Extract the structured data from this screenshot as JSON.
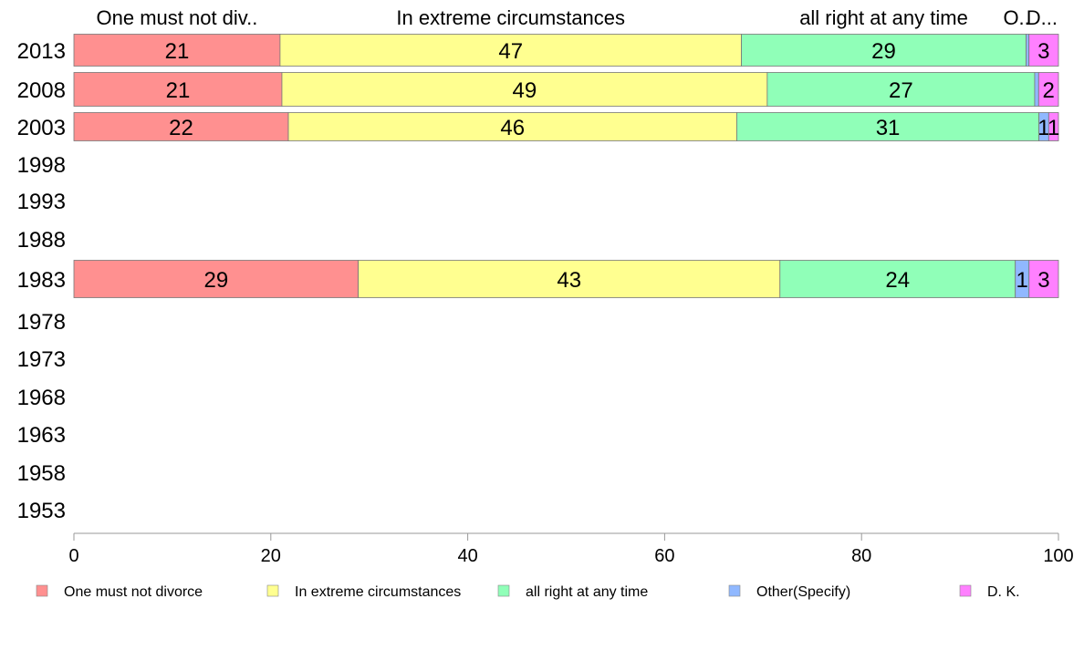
{
  "chart_data": {
    "type": "bar",
    "orientation": "horizontal",
    "stacked": true,
    "categories": [
      "2013",
      "2008",
      "2003",
      "1998",
      "1993",
      "1988",
      "1983",
      "1978",
      "1973",
      "1968",
      "1963",
      "1958",
      "1953"
    ],
    "series": [
      {
        "name": "One must not divorce",
        "color": "#ff9090",
        "values": [
          21,
          21,
          22,
          null,
          null,
          null,
          29,
          null,
          null,
          null,
          null,
          null,
          null
        ],
        "labels": [
          "21",
          "21",
          "22",
          "",
          "",
          "",
          "29",
          "",
          "",
          "",
          "",
          "",
          ""
        ]
      },
      {
        "name": "In extreme circumstances",
        "color": "#ffff90",
        "values": [
          47,
          49,
          46,
          null,
          null,
          null,
          43,
          null,
          null,
          null,
          null,
          null,
          null
        ],
        "labels": [
          "47",
          "49",
          "46",
          "",
          "",
          "",
          "43",
          "",
          "",
          "",
          "",
          "",
          ""
        ]
      },
      {
        "name": "all right at any time",
        "color": "#90ffb8",
        "values": [
          29,
          27,
          31,
          null,
          null,
          null,
          24,
          null,
          null,
          null,
          null,
          null,
          null
        ],
        "labels": [
          "29",
          "27",
          "31",
          "",
          "",
          "",
          "24",
          "",
          "",
          "",
          "",
          "",
          ""
        ]
      },
      {
        "name": "Other(Specify)",
        "color": "#90b8ff",
        "values": [
          0.3,
          0.4,
          1,
          null,
          null,
          null,
          1.4,
          null,
          null,
          null,
          null,
          null,
          null
        ],
        "labels": [
          "",
          "",
          "1",
          "",
          "",
          "",
          "1",
          "",
          "",
          "",
          "",
          "",
          ""
        ]
      },
      {
        "name": "D. K.",
        "color": "#ff80ff",
        "values": [
          3,
          2,
          1,
          null,
          null,
          null,
          3,
          null,
          null,
          null,
          null,
          null,
          null
        ],
        "labels": [
          "3",
          "2",
          "1",
          "",
          "",
          "",
          "3",
          "",
          "",
          "",
          "",
          "",
          ""
        ]
      }
    ],
    "top_labels": [
      "One must not div..",
      "In extreme circumstances",
      "all right at any time",
      "O..",
      "D..."
    ],
    "xlim": [
      0,
      100
    ],
    "xticks": [
      "0",
      "20",
      "40",
      "60",
      "80",
      "100"
    ],
    "legend_position": "bottom",
    "grid": false
  }
}
